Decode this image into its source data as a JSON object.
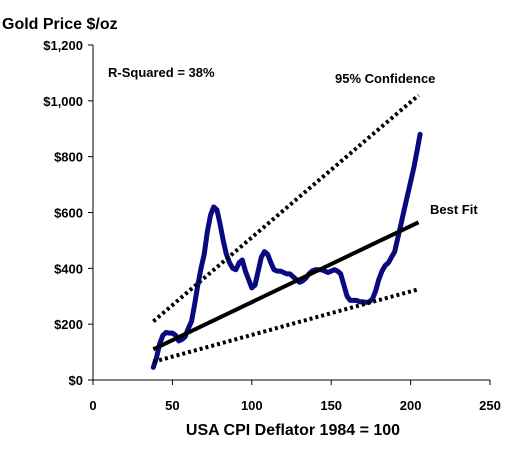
{
  "chart_data": {
    "type": "line",
    "title": "Gold Price $/oz",
    "xlabel": "USA CPI Deflator 1984 = 100",
    "ylabel": "",
    "xlim": [
      0,
      250
    ],
    "ylim": [
      0,
      1200
    ],
    "x_ticks": [
      "0",
      "50",
      "100",
      "150",
      "200",
      "250"
    ],
    "y_ticks": [
      "$0",
      "$200",
      "$400",
      "$600",
      "$800",
      "$1,000",
      "$1,200"
    ],
    "grid": false,
    "annotations": {
      "r_squared": "R-Squared = 38%",
      "confidence": "95% Confidence",
      "best_fit": "Best Fit"
    },
    "colors": {
      "gold_line": "#0a0a80",
      "fit_line": "#000000"
    },
    "series": [
      {
        "name": "",
        "style": "solid-thick",
        "x": [
          38,
          40,
          42,
          44,
          46,
          48,
          50,
          52,
          54,
          56,
          58,
          60,
          62,
          64,
          66,
          68,
          70,
          72,
          74,
          76,
          78,
          80,
          82,
          84,
          86,
          88,
          90,
          92,
          94,
          96,
          98,
          100,
          102,
          104,
          106,
          108,
          110,
          112,
          114,
          116,
          118,
          120,
          122,
          124,
          126,
          128,
          130,
          132,
          134,
          136,
          138,
          140,
          142,
          144,
          146,
          148,
          150,
          152,
          154,
          156,
          158,
          160,
          162,
          164,
          166,
          168,
          170,
          172,
          174,
          176,
          178,
          180,
          182,
          184,
          186,
          188,
          190,
          192,
          194,
          196,
          198,
          200,
          202,
          204,
          206
        ],
        "y": [
          45,
          80,
          130,
          160,
          170,
          168,
          168,
          160,
          140,
          145,
          155,
          185,
          210,
          270,
          340,
          400,
          450,
          530,
          590,
          620,
          610,
          560,
          500,
          450,
          420,
          400,
          395,
          420,
          430,
          390,
          360,
          330,
          340,
          390,
          440,
          460,
          450,
          420,
          395,
          390,
          390,
          385,
          380,
          380,
          370,
          360,
          350,
          355,
          365,
          380,
          390,
          395,
          395,
          395,
          390,
          385,
          390,
          395,
          390,
          380,
          340,
          300,
          285,
          285,
          285,
          280,
          280,
          278,
          280,
          290,
          320,
          360,
          390,
          410,
          420,
          440,
          460,
          510,
          560,
          610,
          660,
          710,
          760,
          820,
          880
        ]
      },
      {
        "name": "Best Fit",
        "style": "solid",
        "x": [
          38,
          205
        ],
        "y": [
          110,
          565
        ]
      },
      {
        "name": "95% Confidence",
        "style": "dotted",
        "x": [
          38,
          205
        ],
        "y": [
          210,
          1020
        ]
      },
      {
        "name": "",
        "style": "dotted",
        "x": [
          38,
          205
        ],
        "y": [
          65,
          325
        ]
      }
    ]
  }
}
